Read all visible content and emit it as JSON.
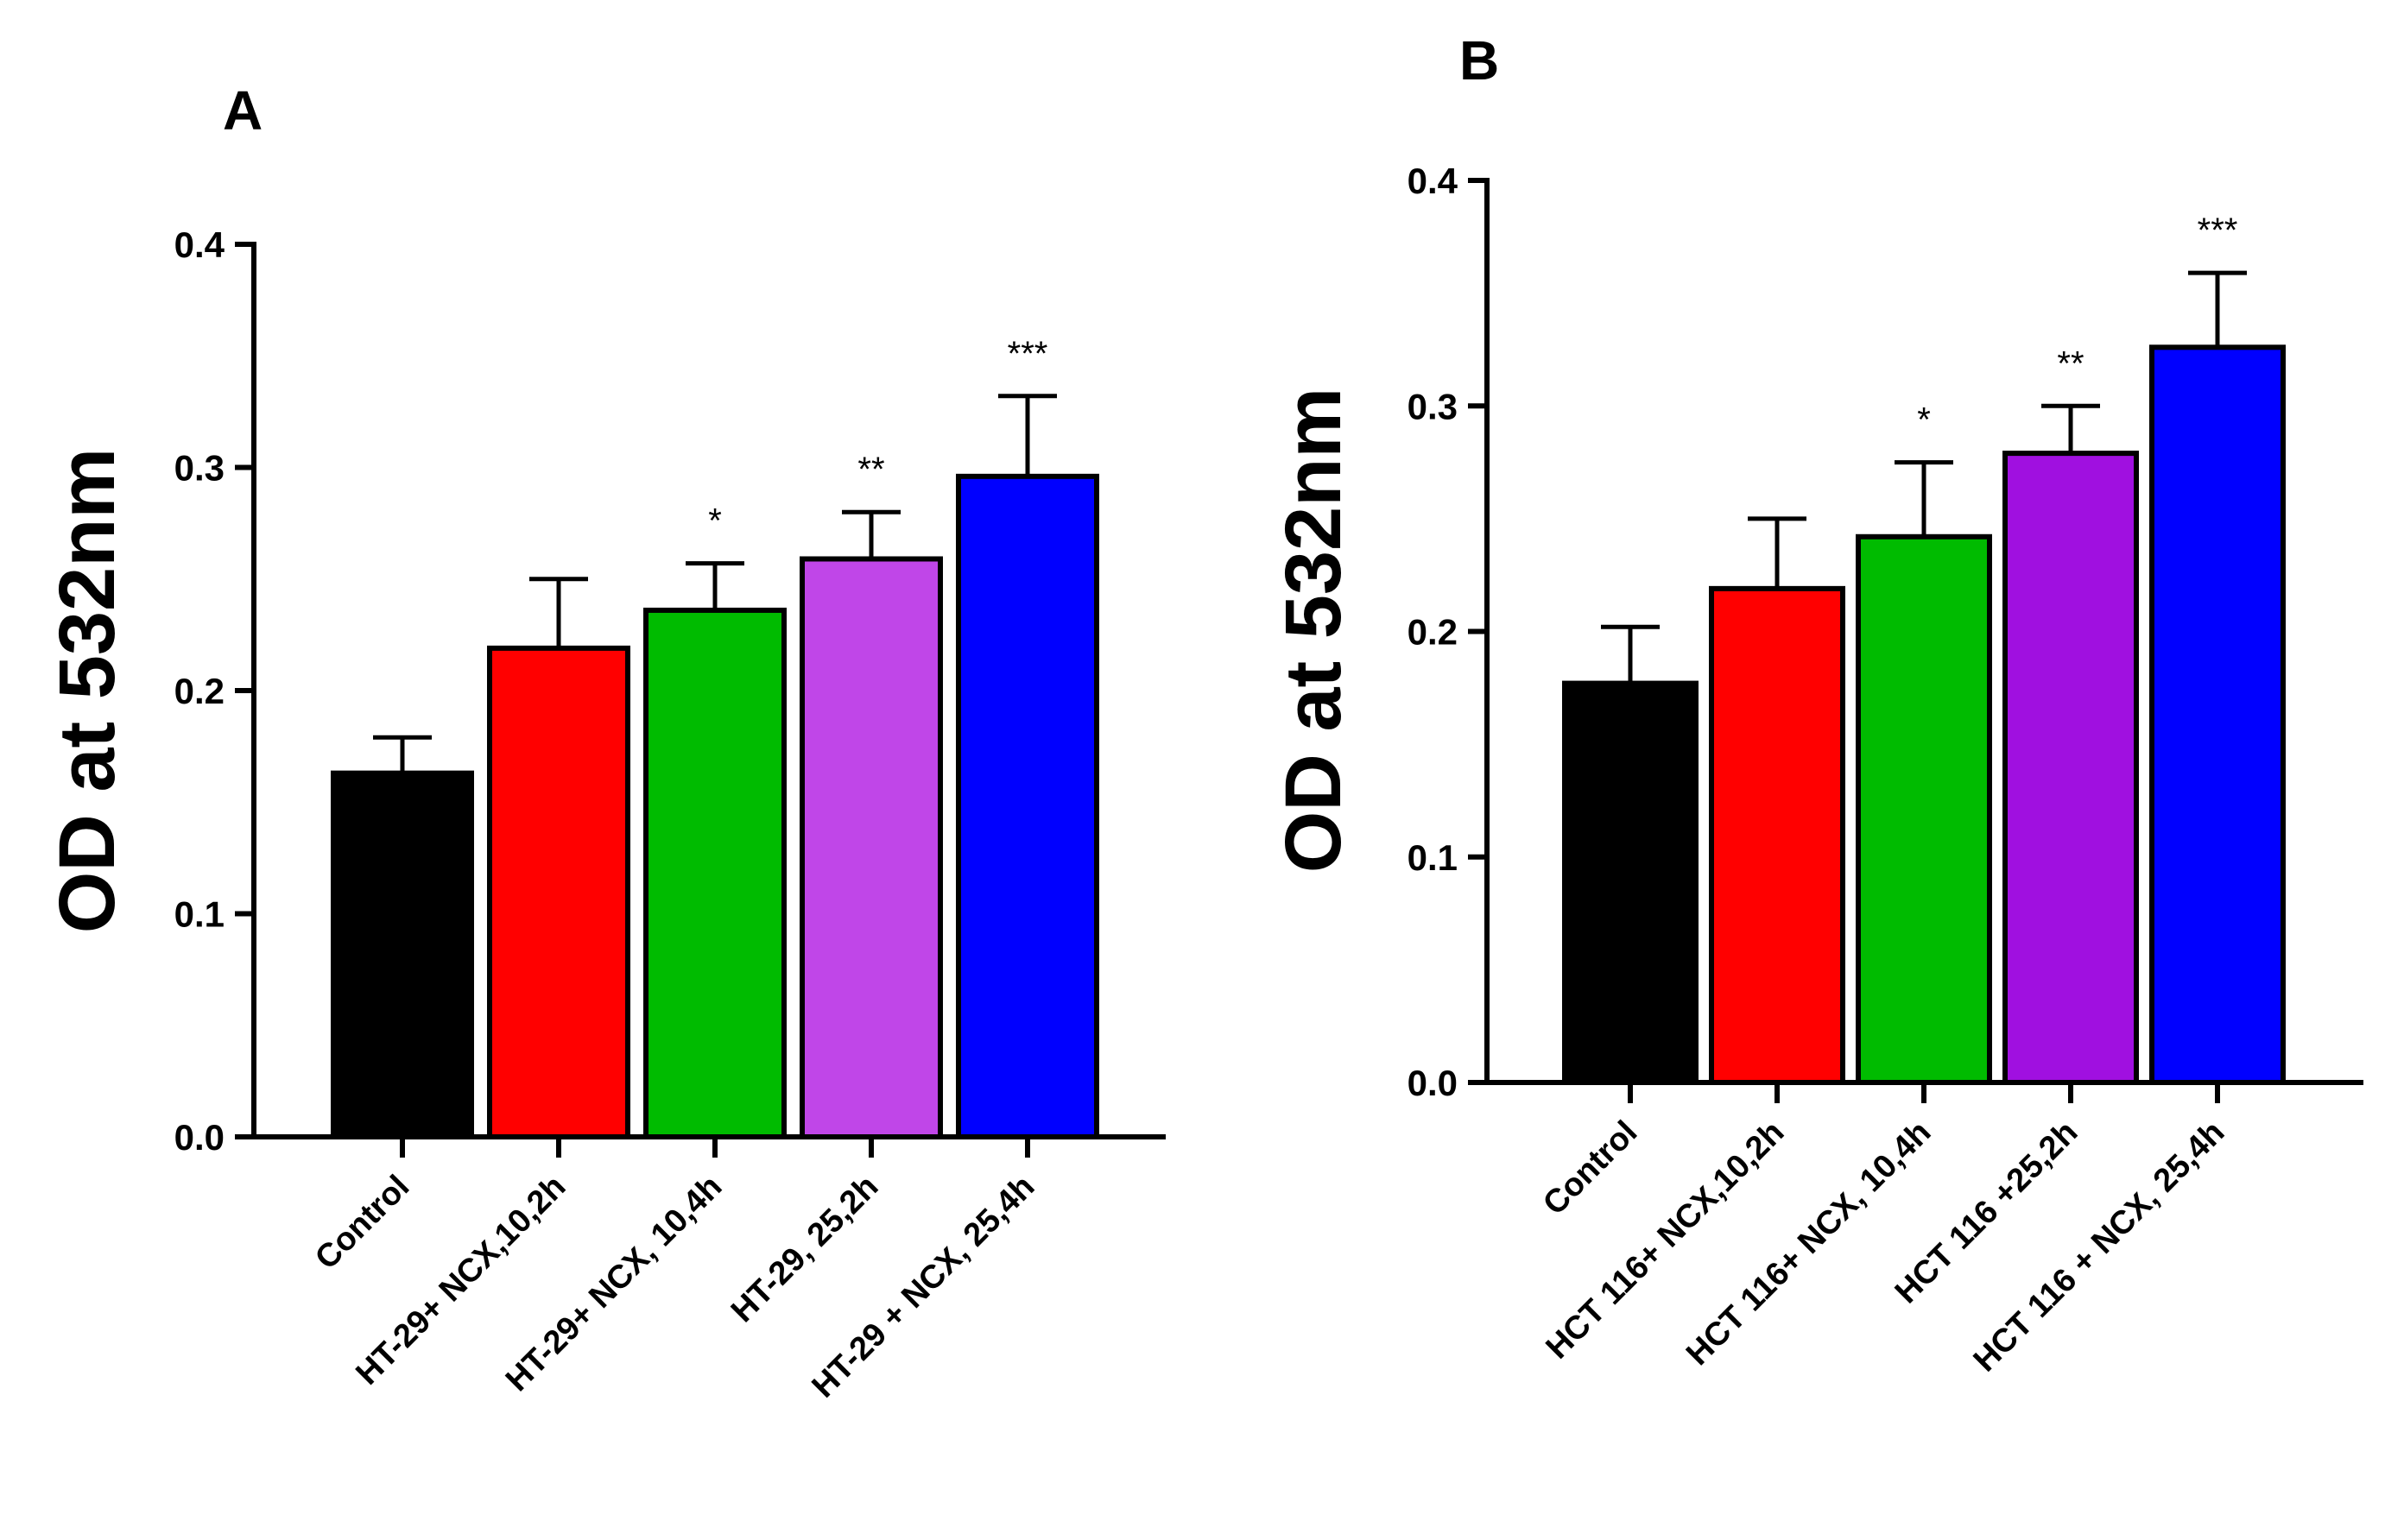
{
  "chart_data": [
    {
      "type": "bar",
      "panel": "A",
      "title": "",
      "xlabel": "",
      "ylabel": "OD at 532nm",
      "ylim": [
        0,
        0.4
      ],
      "yticks": [
        "0.0",
        "0.1",
        "0.2",
        "0.3",
        "0.4"
      ],
      "categories": [
        "Control",
        "HT-29+ NCX,10,2h",
        "HT-29+ NCX, 10,4h",
        "HT-29, 25,2h",
        "HT-29 + NCX, 25,4h"
      ],
      "values": [
        0.163,
        0.219,
        0.236,
        0.259,
        0.296
      ],
      "errors": [
        0.016,
        0.031,
        0.021,
        0.021,
        0.036
      ],
      "significance": [
        "",
        "",
        "*",
        "**",
        "***"
      ],
      "colors": [
        "#000000",
        "#ff0000",
        "#00bb00",
        "#c046e8",
        "#0000ff"
      ]
    },
    {
      "type": "bar",
      "panel": "B",
      "title": "",
      "xlabel": "",
      "ylabel": "OD at 532nm",
      "ylim": [
        0,
        0.4
      ],
      "yticks": [
        "0.0",
        "0.1",
        "0.2",
        "0.3",
        "0.4"
      ],
      "categories": [
        "Control",
        "HCT 116+ NCX,10,2h",
        "HCT 116+ NCX, 10,4h",
        "HCT 116 +25,2h",
        "HCT 116 + NCX, 25,4h"
      ],
      "values": [
        0.177,
        0.219,
        0.242,
        0.279,
        0.326
      ],
      "errors": [
        0.025,
        0.031,
        0.033,
        0.021,
        0.033
      ],
      "significance": [
        "",
        "",
        "*",
        "**",
        "***"
      ],
      "colors": [
        "#000000",
        "#ff0000",
        "#00bb00",
        "#a010e0",
        "#0000ff"
      ]
    }
  ]
}
